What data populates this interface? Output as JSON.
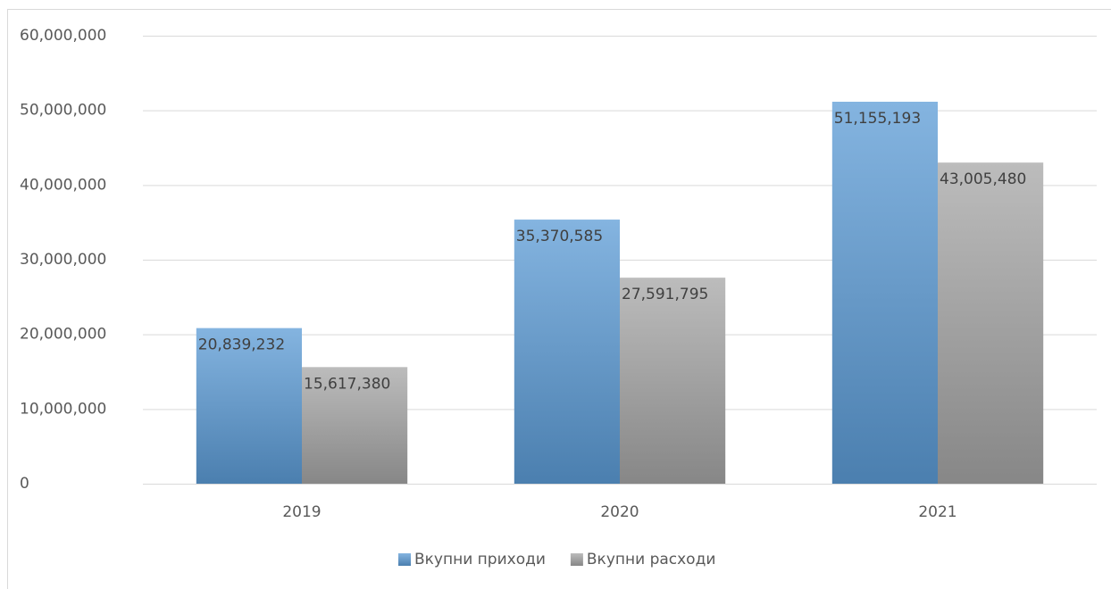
{
  "chart_data": {
    "type": "bar",
    "categories": [
      "2019",
      "2020",
      "2021"
    ],
    "series": [
      {
        "name": "Вкупни приходи",
        "color": "#5b9bd5",
        "values": [
          20839232,
          35370585,
          51155193
        ],
        "value_labels": [
          "20,839,232",
          "35,370,585",
          "51,155,193"
        ]
      },
      {
        "name": "Вкупни расходи",
        "color": "#a5a5a5",
        "values": [
          15617380,
          27591795,
          43005480
        ],
        "value_labels": [
          "15,617,380",
          "27,591,795",
          "43,005,480"
        ]
      }
    ],
    "ylim": [
      0,
      60000000
    ],
    "yticks": [
      0,
      {
        "value": 10000000,
        "label": "10,000,000"
      },
      {
        "value": 20000000,
        "label": "20,000,000"
      },
      {
        "value": 30000000,
        "label": "30,000,000"
      },
      {
        "value": 40000000,
        "label": "40,000,000"
      },
      {
        "value": 50000000,
        "label": "50,000,000"
      },
      {
        "value": 60000000,
        "label": "60,000,000"
      }
    ],
    "grid": true,
    "legend": "bottom"
  }
}
